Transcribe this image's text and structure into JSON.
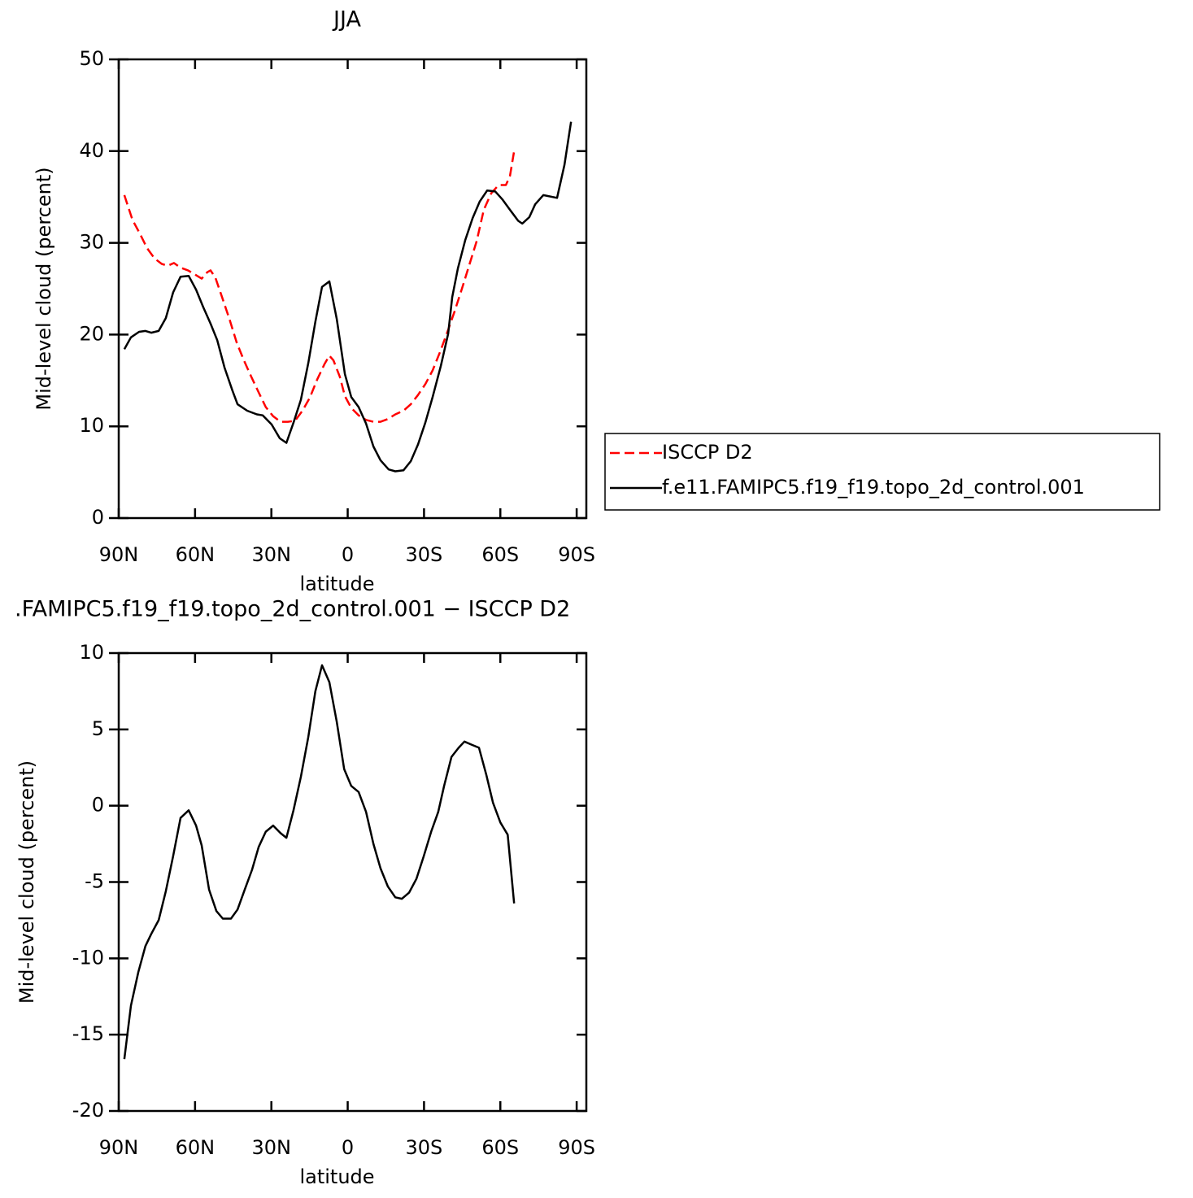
{
  "chart_data": [
    {
      "type": "line",
      "title": "JJA",
      "x_label": "latitude",
      "y_label": "Mid-level cloud (percent)",
      "xlim": [
        90,
        -93.8
      ],
      "xticks": [
        {
          "value": 90,
          "label": "90N"
        },
        {
          "value": 60,
          "label": "60N"
        },
        {
          "value": 30,
          "label": "30N"
        },
        0,
        {
          "value": -30,
          "label": "30S"
        },
        {
          "value": -60,
          "label": "60S"
        },
        {
          "value": -90,
          "label": "90S"
        }
      ],
      "ylim": [
        0,
        50
      ],
      "yticks": [
        0,
        10,
        20,
        30,
        40,
        50
      ],
      "legend": "right",
      "series": [
        {
          "name": "ISCCP D2",
          "color": "#ff0000",
          "dashed": true,
          "x": [
            87.8,
            84.6,
            81.7,
            78.8,
            75.9,
            73.1,
            70.8,
            68.3,
            65.7,
            62.8,
            60.3,
            57.4,
            55.2,
            53.9,
            52.0,
            49.4,
            46.5,
            43.6,
            40.8,
            37.9,
            35.0,
            32.2,
            29.3,
            26.4,
            23.5,
            20.7,
            17.8,
            14.9,
            12.0,
            9.1,
            7.2,
            5.6,
            3.1,
            1.1,
            -1.4,
            -4.3,
            -7.2,
            -10.1,
            -12.9,
            -15.8,
            -18.7,
            -21.9,
            -24.8,
            -27.6,
            -30.5,
            -33.4,
            -36.3,
            -39.2,
            -42.0,
            -44.9,
            -47.8,
            -50.7,
            -53.5,
            -56.4,
            -59.3,
            -62.2,
            -63.8,
            -65.4
          ],
          "values": [
            35.2,
            32.5,
            31.0,
            29.4,
            28.3,
            27.7,
            27.5,
            27.8,
            27.3,
            27.0,
            26.6,
            26.1,
            26.8,
            27.0,
            26.2,
            24.1,
            21.7,
            19.1,
            17.2,
            15.4,
            13.7,
            12.1,
            11.1,
            10.5,
            10.5,
            10.6,
            11.7,
            13.1,
            15.1,
            16.8,
            17.7,
            17.2,
            15.4,
            13.3,
            12.0,
            11.2,
            10.7,
            10.5,
            10.5,
            10.8,
            11.3,
            11.7,
            12.4,
            13.4,
            14.6,
            16.1,
            18.1,
            20.3,
            22.5,
            25.0,
            27.6,
            30.2,
            33.6,
            35.4,
            36.3,
            36.3,
            37.3,
            40.0
          ]
        },
        {
          "name": "f.e11.FAMIPC5.f19_f19.topo_2d_control.001",
          "color": "#000000",
          "dashed": false,
          "x": [
            87.8,
            85.2,
            82.0,
            79.5,
            77.2,
            74.3,
            71.5,
            68.6,
            65.7,
            62.5,
            59.6,
            56.8,
            53.9,
            51.3,
            48.4,
            45.3,
            43.3,
            39.5,
            35.7,
            33.4,
            29.9,
            26.7,
            24.1,
            21.3,
            18.4,
            15.5,
            12.7,
            10.1,
            7.2,
            4.3,
            1.1,
            -1.4,
            -4.3,
            -7.2,
            -10.1,
            -12.9,
            -16.1,
            -18.7,
            -21.9,
            -24.8,
            -27.6,
            -30.5,
            -33.4,
            -36.6,
            -39.5,
            -41.1,
            -43.3,
            -46.2,
            -49.1,
            -51.9,
            -54.8,
            -58.0,
            -60.9,
            -63.8,
            -67.0,
            -68.6,
            -71.4,
            -73.7,
            -76.9,
            -82.3,
            -85.2,
            -87.8
          ],
          "values": [
            18.4,
            19.7,
            20.3,
            20.4,
            20.2,
            20.4,
            21.8,
            24.6,
            26.3,
            26.4,
            24.9,
            23.0,
            21.2,
            19.4,
            16.4,
            13.9,
            12.4,
            11.7,
            11.3,
            11.2,
            10.2,
            8.7,
            8.2,
            10.4,
            12.9,
            16.9,
            21.4,
            25.2,
            25.8,
            21.7,
            15.7,
            13.2,
            12.1,
            10.3,
            7.8,
            6.3,
            5.3,
            5.1,
            5.2,
            6.2,
            8.0,
            10.4,
            13.2,
            16.6,
            20.1,
            24.1,
            27.2,
            30.3,
            32.7,
            34.5,
            35.7,
            35.6,
            34.7,
            33.6,
            32.4,
            32.1,
            32.8,
            34.2,
            35.2,
            34.9,
            38.5,
            43.2
          ]
        }
      ]
    },
    {
      "type": "line",
      "title": ".FAMIPC5.f19_f19.topo_2d_control.001 − ISCCP D2",
      "x_label": "latitude",
      "y_label": "Mid-level cloud (percent)",
      "xlim": [
        90,
        -93.8
      ],
      "xticks": [
        {
          "value": 90,
          "label": "90N"
        },
        {
          "value": 60,
          "label": "60N"
        },
        {
          "value": 30,
          "label": "30N"
        },
        0,
        {
          "value": -30,
          "label": "30S"
        },
        {
          "value": -60,
          "label": "60S"
        },
        {
          "value": -90,
          "label": "90S"
        }
      ],
      "ylim": [
        -20,
        10
      ],
      "yticks": [
        -20,
        -15,
        -10,
        -5,
        0,
        5,
        10
      ],
      "series": [
        {
          "color": "#000000",
          "dashed": false,
          "x": [
            87.8,
            85.2,
            82.3,
            79.5,
            77.2,
            74.3,
            71.5,
            68.6,
            65.7,
            62.5,
            59.6,
            57.4,
            54.5,
            51.6,
            49.1,
            45.9,
            43.3,
            40.5,
            37.6,
            35.0,
            32.2,
            29.3,
            26.4,
            24.1,
            21.3,
            18.4,
            15.5,
            12.7,
            10.1,
            7.2,
            4.3,
            1.4,
            -1.4,
            -4.3,
            -7.2,
            -10.1,
            -12.9,
            -15.8,
            -18.7,
            -21.3,
            -24.1,
            -27.0,
            -29.9,
            -32.8,
            -35.6,
            -37.9,
            -40.8,
            -43.6,
            -45.9,
            -48.7,
            -51.6,
            -54.5,
            -57.1,
            -60.0,
            -62.9,
            -65.4
          ],
          "values": [
            -16.6,
            -13.1,
            -10.9,
            -9.2,
            -8.4,
            -7.5,
            -5.6,
            -3.3,
            -0.8,
            -0.3,
            -1.3,
            -2.6,
            -5.5,
            -6.9,
            -7.4,
            -7.4,
            -6.8,
            -5.5,
            -4.2,
            -2.7,
            -1.7,
            -1.3,
            -1.8,
            -2.1,
            -0.3,
            1.9,
            4.5,
            7.5,
            9.2,
            8.1,
            5.5,
            2.4,
            1.3,
            0.9,
            -0.4,
            -2.5,
            -4.1,
            -5.3,
            -6.0,
            -6.1,
            -5.7,
            -4.8,
            -3.3,
            -1.7,
            -0.4,
            1.3,
            3.2,
            3.8,
            4.2,
            4.0,
            3.8,
            2.0,
            0.2,
            -1.1,
            -1.9,
            -6.4
          ]
        }
      ]
    }
  ]
}
